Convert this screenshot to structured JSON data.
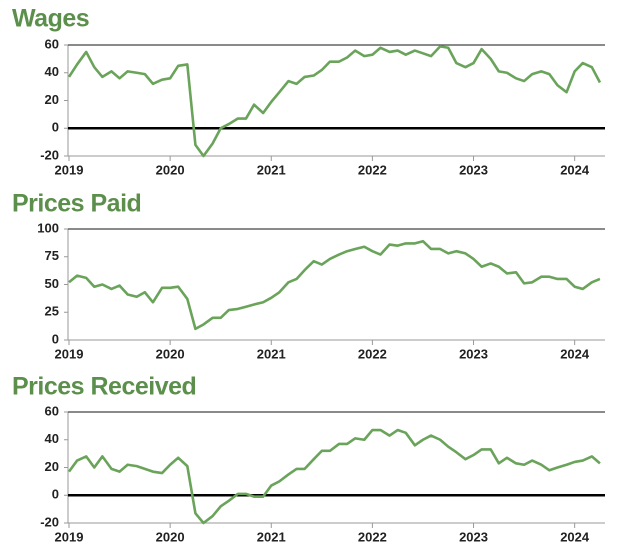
{
  "chart_data": [
    {
      "type": "line",
      "title": "Wages",
      "color": "#6aa35a",
      "x": [
        2019,
        2019.08,
        2019.17,
        2019.25,
        2019.33,
        2019.42,
        2019.5,
        2019.58,
        2019.67,
        2019.75,
        2019.83,
        2019.92,
        2020,
        2020.08,
        2020.17,
        2020.25,
        2020.33,
        2020.42,
        2020.5,
        2020.58,
        2020.67,
        2020.75,
        2020.83,
        2020.92,
        2021,
        2021.08,
        2021.17,
        2021.25,
        2021.33,
        2021.42,
        2021.5,
        2021.58,
        2021.67,
        2021.75,
        2021.83,
        2021.92,
        2022,
        2022.08,
        2022.17,
        2022.25,
        2022.33,
        2022.42,
        2022.5,
        2022.58,
        2022.67,
        2022.75,
        2022.83,
        2022.92,
        2023,
        2023.08,
        2023.17,
        2023.25,
        2023.33,
        2023.42,
        2023.5,
        2023.58,
        2023.67,
        2023.75,
        2023.83,
        2023.92,
        2024,
        2024.08,
        2024.17,
        2024.25
      ],
      "values": [
        37,
        46,
        55,
        44,
        37,
        41,
        36,
        41,
        40,
        39,
        32,
        35,
        36,
        45,
        46,
        -12,
        -20,
        -11,
        0,
        3,
        7,
        7,
        17,
        11,
        19,
        26,
        34,
        32,
        37,
        38,
        42,
        48,
        48,
        51,
        56,
        52,
        53,
        58,
        55,
        56,
        53,
        56,
        54,
        52,
        59,
        58,
        47,
        44,
        47,
        57,
        50,
        41,
        40,
        36,
        34,
        39,
        41,
        39,
        31,
        26,
        41,
        47,
        44,
        33
      ],
      "xlim": [
        2019,
        2024.3
      ],
      "xticks": [
        2019,
        2020,
        2021,
        2022,
        2023,
        2024
      ],
      "ylim": [
        -20,
        60
      ],
      "yticks": [
        -20,
        0,
        20,
        40,
        60
      ]
    },
    {
      "type": "line",
      "title": "Prices Paid",
      "color": "#6aa35a",
      "x": [
        2019,
        2019.08,
        2019.17,
        2019.25,
        2019.33,
        2019.42,
        2019.5,
        2019.58,
        2019.67,
        2019.75,
        2019.83,
        2019.92,
        2020,
        2020.08,
        2020.17,
        2020.25,
        2020.33,
        2020.42,
        2020.5,
        2020.58,
        2020.67,
        2020.75,
        2020.83,
        2020.92,
        2021,
        2021.08,
        2021.17,
        2021.25,
        2021.33,
        2021.42,
        2021.5,
        2021.58,
        2021.67,
        2021.75,
        2021.83,
        2021.92,
        2022,
        2022.08,
        2022.17,
        2022.25,
        2022.33,
        2022.42,
        2022.5,
        2022.58,
        2022.67,
        2022.75,
        2022.83,
        2022.92,
        2023,
        2023.08,
        2023.17,
        2023.25,
        2023.33,
        2023.42,
        2023.5,
        2023.58,
        2023.67,
        2023.75,
        2023.83,
        2023.92,
        2024,
        2024.08,
        2024.17,
        2024.25
      ],
      "values": [
        52,
        58,
        56,
        48,
        50,
        46,
        49,
        41,
        39,
        43,
        34,
        47,
        47,
        48,
        37,
        10,
        14,
        20,
        20,
        27,
        28,
        30,
        32,
        34,
        38,
        43,
        52,
        55,
        63,
        71,
        68,
        73,
        77,
        80,
        82,
        84,
        80,
        77,
        86,
        85,
        87,
        87,
        89,
        82,
        82,
        78,
        80,
        78,
        73,
        66,
        69,
        66,
        60,
        61,
        51,
        52,
        57,
        57,
        55,
        55,
        48,
        46,
        52,
        55
      ],
      "xlim": [
        2019,
        2024.3
      ],
      "xticks": [
        2019,
        2020,
        2021,
        2022,
        2023,
        2024
      ],
      "ylim": [
        0,
        100
      ],
      "yticks": [
        0,
        25,
        50,
        75,
        100
      ]
    },
    {
      "type": "line",
      "title": "Prices Received",
      "color": "#6aa35a",
      "x": [
        2019,
        2019.08,
        2019.17,
        2019.25,
        2019.33,
        2019.42,
        2019.5,
        2019.58,
        2019.67,
        2019.75,
        2019.83,
        2019.92,
        2020,
        2020.08,
        2020.17,
        2020.25,
        2020.33,
        2020.42,
        2020.5,
        2020.58,
        2020.67,
        2020.75,
        2020.83,
        2020.92,
        2021,
        2021.08,
        2021.17,
        2021.25,
        2021.33,
        2021.42,
        2021.5,
        2021.58,
        2021.67,
        2021.75,
        2021.83,
        2021.92,
        2022,
        2022.08,
        2022.17,
        2022.25,
        2022.33,
        2022.42,
        2022.5,
        2022.58,
        2022.67,
        2022.75,
        2022.83,
        2022.92,
        2023,
        2023.08,
        2023.17,
        2023.25,
        2023.33,
        2023.42,
        2023.5,
        2023.58,
        2023.67,
        2023.75,
        2023.83,
        2023.92,
        2024,
        2024.08,
        2024.17,
        2024.25
      ],
      "values": [
        17,
        25,
        28,
        20,
        28,
        19,
        17,
        22,
        21,
        19,
        17,
        16,
        22,
        27,
        21,
        -13,
        -20,
        -15,
        -8,
        -4,
        1,
        1,
        -1,
        -1,
        7,
        10,
        15,
        19,
        19,
        26,
        32,
        32,
        37,
        37,
        41,
        40,
        47,
        47,
        43,
        47,
        45,
        36,
        40,
        43,
        40,
        35,
        31,
        26,
        29,
        33,
        33,
        23,
        27,
        23,
        22,
        25,
        22,
        18,
        20,
        22,
        24,
        25,
        28,
        23
      ],
      "xlim": [
        2019,
        2024.3
      ],
      "xticks": [
        2019,
        2020,
        2021,
        2022,
        2023,
        2024
      ],
      "ylim": [
        -20,
        60
      ],
      "yticks": [
        -20,
        0,
        20,
        40,
        60
      ]
    }
  ]
}
